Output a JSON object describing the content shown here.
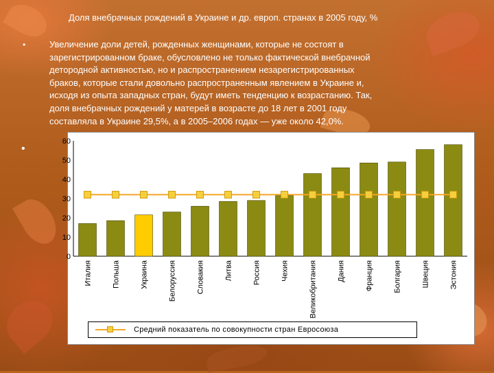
{
  "slide": {
    "title": "Доля внебрачных рождений в Украине и др. европ. странах в 2005 году, %",
    "paragraph_lines": [
      "Увеличение доли детей, рожденных женщинами, которые не состоят в",
      "зарегистрированном браке, обусловлено не только фактической внебрачной",
      "детородной активностью, но и распространением незарегистрированных",
      "браков, которые стали довольно распространенным явлением в Украине и,",
      "исходя из опыта западных стран, будут иметь тенденцию к возрастанию. Так,",
      "доля внебрачных рождений у матерей в возрасте до 18 лет в 2001 году",
      "составляла в Украине 29,5%, а в 2005–2006 годах — уже около 42,0%."
    ]
  },
  "chart_data": {
    "type": "bar",
    "categories": [
      "Италия",
      "Польша",
      "Украина",
      "Белоруссия",
      "Словакия",
      "Литва",
      "Россия",
      "Чехия",
      "Великобритания",
      "Дания",
      "Франция",
      "Болгария",
      "Швеция",
      "Эстония"
    ],
    "series": [
      {
        "values": [
          17,
          18.5,
          21.5,
          23,
          26,
          28.5,
          29,
          31.5,
          43,
          46,
          48.5,
          49,
          55.5,
          58
        ],
        "color": "#8b8b14",
        "highlight": {
          "category": "Украина",
          "color": "#ffcc00"
        }
      },
      {
        "name": "Средний показатель по совокупности стран Евросоюза",
        "type": "line",
        "values": [
          32,
          32,
          32,
          32,
          32,
          32,
          32,
          32,
          32,
          32,
          32,
          32,
          32,
          32
        ],
        "color": "#f5a623"
      }
    ],
    "yticks": [
      "0",
      "10",
      "20",
      "30",
      "40",
      "50",
      "60"
    ],
    "ylim": [
      0,
      60
    ],
    "grid": false,
    "legend": "bottom"
  },
  "colors": {
    "bar": "#8b8b14",
    "bar_stroke": "#4a4a06",
    "highlight_bar": "#ffcc00",
    "avg_line": "#f5a623",
    "avg_marker": "#f7cf3c"
  }
}
